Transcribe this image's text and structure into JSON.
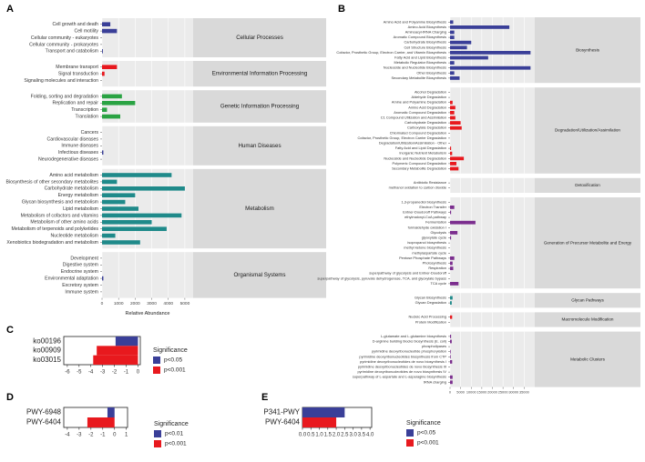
{
  "colors": {
    "blue": "#3a3f98",
    "red": "#e8191e",
    "green": "#2aa343",
    "teal": "#1f8a8a",
    "strip": "#d9d9d9",
    "bg": "#ebebeb"
  },
  "chart_data": [
    {
      "panel": "A",
      "type": "bar",
      "orientation": "horizontal",
      "xlabel": "Relative Abundance",
      "xlim": [
        0,
        5500
      ],
      "xticks": [
        0,
        1000,
        2000,
        3000,
        4000,
        5000
      ],
      "groups": [
        {
          "name": "Cellular Processes",
          "color": "#3a3f98",
          "categories": [
            "Cell growth and death",
            "Cell motility",
            "Cellular community - eukaryotes",
            "Cellular community - prokaryotes",
            "Transport and catabolism"
          ],
          "values": [
            500,
            900,
            0,
            0,
            50
          ]
        },
        {
          "name": "Environmental Information Processing",
          "color": "#e8191e",
          "categories": [
            "Membrane transport",
            "Signal transduction",
            "Signaling molecules and interaction"
          ],
          "values": [
            900,
            150,
            0
          ]
        },
        {
          "name": "Genetic Information Processing",
          "color": "#2aa343",
          "categories": [
            "Folding, sorting and degradation",
            "Replication and repair",
            "Transcription",
            "Translation"
          ],
          "values": [
            1200,
            2000,
            300,
            1100
          ]
        },
        {
          "name": "Human Diseases",
          "color": "#3a3f98",
          "categories": [
            "Cancers",
            "Cardiovascular diseases",
            "Immune diseases",
            "Infectious diseases",
            "Neurodegenerative diseases"
          ],
          "values": [
            0,
            0,
            0,
            80,
            0
          ]
        },
        {
          "name": "Metabolism",
          "color": "#1f8a8a",
          "categories": [
            "Amino acid metabolism",
            "Biosynthesis of other secondary metabolites",
            "Carbohydrate metabolism",
            "Energy metabolism",
            "Glycan biosynthesis and metabolism",
            "Lipid metabolism",
            "Metabolism of cofactors and vitamins",
            "Metabolism of other amino acids",
            "Metabolism of terpenoids and polyketides",
            "Nucleotide metabolism",
            "Xenobiotics biodegradation and metabolism"
          ],
          "values": [
            4200,
            900,
            5000,
            2000,
            1400,
            2200,
            4800,
            3000,
            3900,
            800,
            2300
          ]
        },
        {
          "name": "Organismal Systems",
          "color": "#3a3f98",
          "categories": [
            "Development",
            "Digestive system",
            "Endocrine system",
            "Environmental adaptation",
            "Excretory system",
            "Immune system"
          ],
          "values": [
            0,
            0,
            0,
            80,
            0,
            0
          ]
        }
      ]
    },
    {
      "panel": "B",
      "type": "bar",
      "orientation": "horizontal",
      "xlim": [
        0,
        40000
      ],
      "xticks": [
        0,
        5000,
        10000,
        15000,
        20000,
        25000,
        30000,
        35000
      ],
      "groups": [
        {
          "name": "Biosynthesis",
          "color": "#3a3f98",
          "categories": [
            "Amino Acid and Polyamine Biosynthesis",
            "Amino Acid Biosynthesis",
            "Aminoacyl-tRNA Charging",
            "Aromatic Compound Biosynthesis",
            "Carbohydrate Biosynthesis",
            "Cell Structure Biosynthesis",
            "Cofactor, Prosthetic Group, Electron Carrier, and Vitamin Biosynthesis",
            "Fatty Acid and Lipid Biosynthesis",
            "Metabolic Regulator Biosynthesis",
            "Nucleoside and Nucleotide Biosynthesis",
            "Other Biosynthesis",
            "Secondary Metabolite Biosynthesis"
          ],
          "values": [
            1500,
            28000,
            2000,
            2000,
            10000,
            8000,
            38000,
            18000,
            2000,
            38000,
            2000,
            4500
          ]
        },
        {
          "name": "Degradation/Utilization/Assimilation",
          "color": "#e8191e",
          "categories": [
            "Alcohol Degradation",
            "Aldehyde Degradation",
            "Amine and Polyamine Degradation",
            "Amino Acid Degradation",
            "Aromatic Compound Degradation",
            "C1 Compound Utilization and Assimilation",
            "Carbohydrate Degradation",
            "Carboxylate Degradation",
            "Chlorinated Compound Degradation",
            "Cofactor, Prosthetic Group, Electron Carrier Degradation",
            "Degradation/Utilization/Assimilation - Other",
            "Fatty Acid and Lipid Degradation",
            "Inorganic Nutrient Metabolism",
            "Nucleoside and Nucleotide Degradation",
            "Polymeric Compound Degradation",
            "Secondary Metabolite Degradation"
          ],
          "values": [
            0,
            0,
            1200,
            2500,
            2000,
            2500,
            5000,
            5500,
            0,
            0,
            0,
            500,
            1000,
            6500,
            3000,
            4000
          ]
        },
        {
          "name": "Detoxification",
          "color": "#3a3f98",
          "categories": [
            "Antibiotic Resistance",
            "methanol oxidation to carbon dioxide"
          ],
          "values": [
            0,
            0
          ]
        },
        {
          "name": "Generation of Precursor Metabolite and Energy",
          "color": "#7b2d8e",
          "categories": [
            "1,3-propanediol biosynthesis",
            "Electron Transfer",
            "Entner-Doudoroff Pathways",
            "ethylmalonyl-CoA pathway",
            "Fermentation",
            "formaldehyde oxidation I",
            "Glycolysis",
            "glyoxylate cycle",
            "isopropanol biosynthesis",
            "methyl ketone biosynthesis",
            "methylaspartate cycle",
            "Pentose Phosphate Pathways",
            "Photosynthesis",
            "Respiration",
            "superpathway of glycolysis and Entner-Doudoroff",
            "superpathway of glycolysis, pyruvate dehydrogenase, TCA, and glyoxylate bypass",
            "TCA cycle"
          ],
          "values": [
            0,
            2000,
            500,
            0,
            12000,
            0,
            3500,
            500,
            0,
            0,
            0,
            2000,
            1200,
            1500,
            0,
            0,
            4000
          ]
        },
        {
          "name": "Glycan Pathways",
          "color": "#1f8a8a",
          "categories": [
            "Glycan Biosynthesis",
            "Glycan Degradation"
          ],
          "values": [
            1200,
            800
          ]
        },
        {
          "name": "Macromolecule Modification",
          "color": "#e8191e",
          "categories": [
            "Nucleic Acid Processing",
            "Protein Modification"
          ],
          "values": [
            1000,
            0
          ]
        },
        {
          "name": "Metabolic Clusters",
          "color": "#7b2d8e",
          "categories": [
            "L-glutamate and L-glutamine biosynthesis",
            "D-arginine building blocks biosynthesis (E. coli)",
            "phospholipases",
            "pyrimidine deoxyribonucleotide phosphorylation",
            "pyrimidine deoxyribonucleotides biosynthesis from CTP",
            "pyrimidine deoxyribonucleotides de novo biosynthesis I",
            "pyrimidine deoxyribonucleotides de novo biosynthesis III",
            "pyrimidine deoxyribonucleotides de novo biosynthesis IV",
            "superpathway of L-aspartate and L-asparagine biosynthesis",
            "tRNA charging"
          ],
          "values": [
            500,
            800,
            0,
            300,
            300,
            1000,
            0,
            0,
            1200,
            1200
          ]
        }
      ]
    },
    {
      "panel": "C",
      "type": "bar",
      "orientation": "horizontal",
      "categories": [
        "ko00196",
        "ko00909",
        "ko03015"
      ],
      "values": [
        -1.9,
        -3.5,
        -3.8
      ],
      "colors": [
        "#3a3f98",
        "#e8191e",
        "#e8191e"
      ],
      "xlim": [
        -6.3,
        0.2
      ],
      "xticks": [
        -6,
        -5,
        -4,
        -3,
        -2,
        -1,
        0
      ],
      "legend": {
        "title": "Significance",
        "items": [
          {
            "label": "p<0.05",
            "color": "#3a3f98"
          },
          {
            "label": "p<0.001",
            "color": "#e8191e"
          }
        ]
      }
    },
    {
      "panel": "D",
      "type": "bar",
      "orientation": "horizontal",
      "categories": [
        "PWY-6948",
        "PWY-6404"
      ],
      "values": [
        -0.6,
        -2.3
      ],
      "colors": [
        "#3a3f98",
        "#e8191e"
      ],
      "xlim": [
        -4.3,
        1.1
      ],
      "xticks": [
        -4,
        -3,
        -2,
        -1,
        0,
        1
      ],
      "legend": {
        "title": "Significance",
        "items": [
          {
            "label": "p<0.01",
            "color": "#3a3f98"
          },
          {
            "label": "p<0.001",
            "color": "#e8191e"
          }
        ]
      }
    },
    {
      "panel": "E",
      "type": "bar",
      "orientation": "horizontal",
      "categories": [
        "P341-PWY",
        "PWY-6404"
      ],
      "values": [
        2.5,
        2.0
      ],
      "colors": [
        "#3a3f98",
        "#e8191e"
      ],
      "xlim": [
        0,
        4.1
      ],
      "xticks": [
        0,
        0.5,
        1,
        1.5,
        2,
        2.5,
        3,
        3.5,
        4
      ],
      "tick_labels": [
        "0.0",
        "0.5",
        "1.0",
        "1.5",
        "2.0",
        "2.5",
        "3.0",
        "3.5",
        "4.0"
      ],
      "legend": {
        "title": "Significance",
        "items": [
          {
            "label": "p<0.05",
            "color": "#3a3f98"
          },
          {
            "label": "p<0.001",
            "color": "#e8191e"
          }
        ]
      }
    }
  ]
}
